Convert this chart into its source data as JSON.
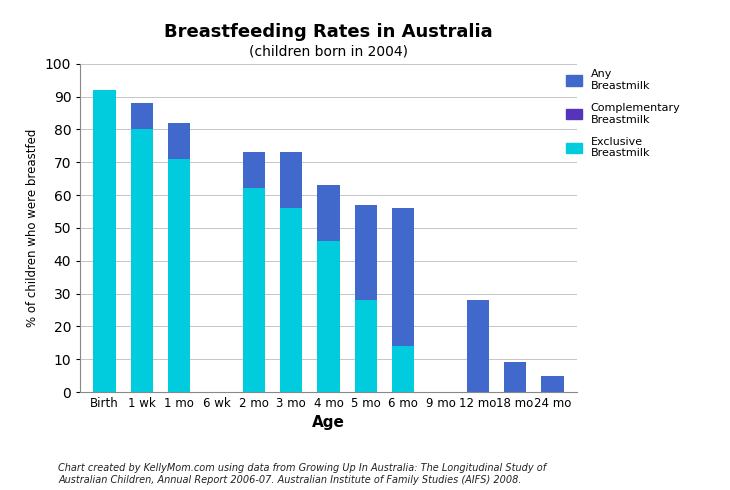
{
  "title": "Breastfeeding Rates in Australia",
  "subtitle": "(children born in 2004)",
  "xlabel": "Age",
  "ylabel": "% of children who were breastfed",
  "categories": [
    "Birth",
    "1 wk",
    "1 mo",
    "6 wk",
    "2 mo",
    "3 mo",
    "4 mo",
    "5 mo",
    "6 mo",
    "9 mo",
    "12 mo",
    "18 mo",
    "24 mo"
  ],
  "any_breastmilk": [
    92,
    88,
    82,
    0,
    73,
    73,
    63,
    57,
    56,
    0,
    28,
    9,
    5
  ],
  "exclusive_breastmilk": [
    92,
    80,
    71,
    0,
    62,
    56,
    46,
    28,
    14,
    0,
    0,
    0,
    0
  ],
  "color_any": "#4169cc",
  "color_exclusive": "#00ccdd",
  "color_complementary": "#5533bb",
  "ylim": [
    0,
    100
  ],
  "yticks": [
    0,
    10,
    20,
    30,
    40,
    50,
    60,
    70,
    80,
    90,
    100
  ],
  "footnote_plain": "Chart created by ",
  "footnote_bold": "KellyMom.com",
  "footnote_italic1": " using data from ",
  "footnote_italic2": "Growing Up In Australia: The Longitudinal Study of\nAustralian Children, Annual Report 2006-07.",
  "footnote_plain2": " Australian Institute of Family Studies (AIFS) 2008.",
  "legend_labels": [
    "Any\nBreastmilk",
    "Complementary\nBreastmilk",
    "Exclusive\nBreastmilk"
  ],
  "background_color": "#ffffff",
  "grid_color": "#bbbbbb",
  "bar_width": 0.6
}
